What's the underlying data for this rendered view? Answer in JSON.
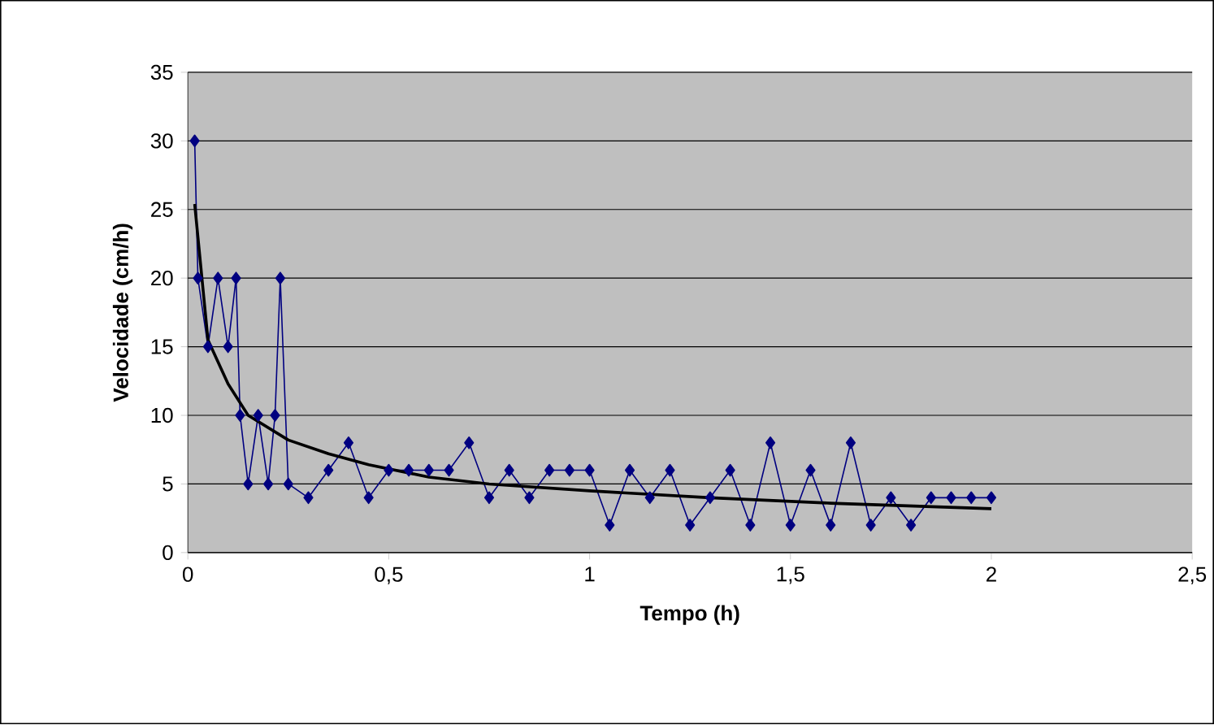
{
  "chart_data": {
    "type": "line",
    "xlabel": "Tempo (h)",
    "ylabel": "Velocidade (cm/h)",
    "xlim": [
      0,
      2.5
    ],
    "ylim": [
      0,
      35
    ],
    "xticks": [
      0,
      {
        "value": 0.5,
        "label": "0,5"
      },
      1,
      {
        "value": 1.5,
        "label": "1,5"
      },
      2,
      {
        "value": 2.5,
        "label": "2,5"
      }
    ],
    "yticks": [
      0,
      5,
      10,
      15,
      20,
      25,
      30,
      35
    ],
    "grid": "y",
    "series": [
      {
        "color": "#000080",
        "marker": "diamond",
        "x": [
          0.017,
          0.025,
          0.05,
          0.075,
          0.1,
          0.12,
          0.13,
          0.15,
          0.175,
          0.2,
          0.217,
          0.23,
          0.25,
          0.3,
          0.35,
          0.4,
          0.45,
          0.5,
          0.55,
          0.6,
          0.65,
          0.7,
          0.75,
          0.8,
          0.85,
          0.9,
          0.95,
          1.0,
          1.05,
          1.1,
          1.15,
          1.2,
          1.25,
          1.3,
          1.35,
          1.4,
          1.45,
          1.5,
          1.55,
          1.6,
          1.65,
          1.7,
          1.75,
          1.8,
          1.85,
          1.9,
          1.95,
          2.0
        ],
        "values": [
          30,
          20,
          15,
          20,
          15,
          20,
          10,
          5,
          10,
          5,
          10,
          20,
          5,
          4,
          6,
          8,
          4,
          6,
          6,
          6,
          6,
          8,
          4,
          6,
          4,
          6,
          6,
          6,
          2,
          6,
          4,
          6,
          2,
          4,
          6,
          2,
          8,
          2,
          6,
          2,
          8,
          2,
          4,
          2,
          4,
          4,
          4,
          4
        ]
      },
      {
        "color": "#000000",
        "marker": "none",
        "x": [
          0.017,
          0.05,
          0.1,
          0.15,
          0.25,
          0.35,
          0.45,
          0.6,
          0.75,
          1.0,
          1.3,
          1.6,
          2.0
        ],
        "values": [
          25.4,
          15.5,
          12.3,
          10,
          8.2,
          7.2,
          6.4,
          5.5,
          5.0,
          4.5,
          4.0,
          3.6,
          3.2
        ]
      }
    ]
  }
}
